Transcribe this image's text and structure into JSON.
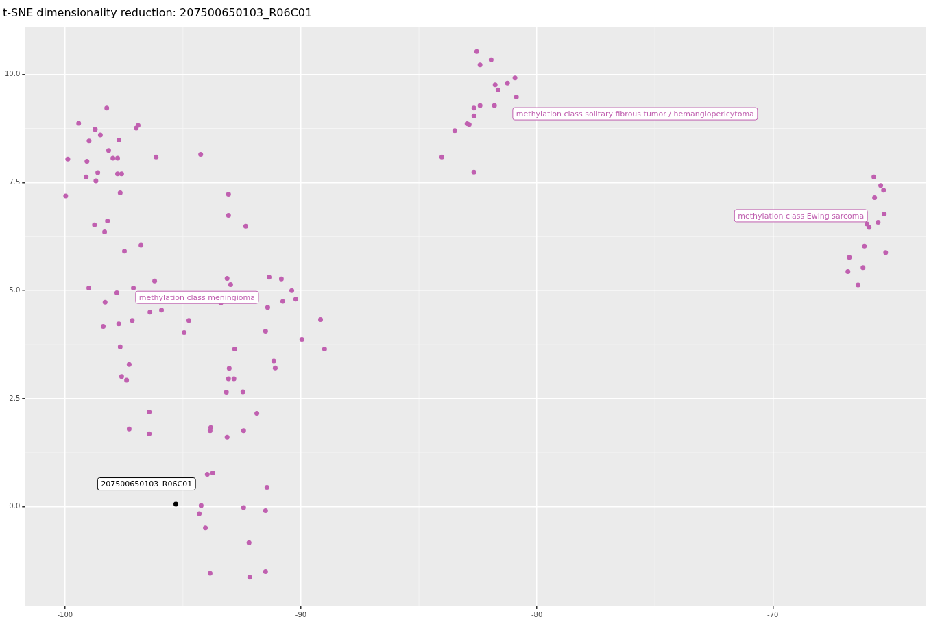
{
  "chart_data": {
    "type": "scatter",
    "title": "t-SNE dimensionality reduction: 207500650103_R06C01",
    "xlim": [
      -101.7,
      -63.5
    ],
    "ylim": [
      -2.3,
      11.1
    ],
    "xticks": [
      -100,
      -90,
      -80,
      -70
    ],
    "yticks": [
      {
        "value": 0,
        "label": "0.0"
      },
      {
        "value": 2.5,
        "label": "2.5"
      },
      {
        "value": 5,
        "label": "5.0"
      },
      {
        "value": 7.5,
        "label": "7.5"
      },
      {
        "value": 10,
        "label": "10.0"
      }
    ],
    "grid": true,
    "legend": false,
    "marker": "circle",
    "series": [
      {
        "color": "#c060b0",
        "x": [
          -99.97,
          -99.88,
          -99.42,
          -98.98,
          -99.07,
          -99.1,
          -98.72,
          -98.23,
          -98.5,
          -98.72,
          -98.15,
          -97.97,
          -97.77,
          -97.71,
          -96.98,
          -96.9,
          -96.14,
          -94.25,
          -98.61,
          -98.69,
          -97.77,
          -97.6,
          -97.66,
          -98.75,
          -98.2,
          -98.32,
          -97.48,
          -96.78,
          -98.99,
          -98.3,
          -97.8,
          -97.1,
          -96.2,
          -98.38,
          -97.72,
          -97.15,
          -96.4,
          -95.91,
          -97.66,
          -97.28,
          -97.6,
          -97.39,
          -96.43,
          -97.28,
          -96.43,
          -93.07,
          -93.07,
          -92.34,
          -93.13,
          -92.98,
          -93.39,
          -94.75,
          -94.95,
          -91.35,
          -90.83,
          -90.39,
          -90.22,
          -90.77,
          -91.41,
          -89.17,
          -91.5,
          -89.96,
          -89.0,
          -92.81,
          -91.15,
          -91.09,
          -93.04,
          -93.07,
          -92.84,
          -93.16,
          -92.46,
          -91.87,
          -93.82,
          -93.85,
          -92.43,
          -93.13,
          -93.97,
          -93.74,
          -91.44,
          -94.23,
          -92.43,
          -94.31,
          -91.5,
          -94.05,
          -92.2,
          -93.85,
          -92.17,
          -91.5,
          -82.55,
          -82.41,
          -81.94,
          -80.93,
          -81.25,
          -81.77,
          -81.65,
          -80.87,
          -82.41,
          -82.67,
          -82.67,
          -81.8,
          -82.96,
          -82.87,
          -83.48,
          -84.03,
          -82.67,
          -65.72,
          -65.43,
          -65.31,
          -65.69,
          -65.28,
          -65.54,
          -66.01,
          -65.92,
          -66.12,
          -65.22,
          -66.76,
          -66.18,
          -66.82,
          -66.39
        ],
        "values": [
          7.19,
          8.04,
          8.87,
          8.46,
          7.99,
          7.63,
          8.73,
          9.22,
          8.6,
          8.73,
          8.24,
          8.06,
          8.06,
          8.48,
          8.76,
          8.82,
          8.09,
          8.15,
          7.73,
          7.54,
          7.7,
          7.7,
          7.26,
          6.52,
          6.61,
          6.36,
          5.91,
          6.05,
          5.06,
          4.73,
          4.95,
          5.06,
          5.22,
          4.17,
          4.23,
          4.31,
          4.5,
          4.55,
          3.7,
          3.29,
          3.01,
          2.93,
          2.19,
          1.8,
          1.69,
          7.23,
          6.74,
          6.49,
          5.28,
          5.14,
          4.72,
          4.31,
          4.03,
          5.31,
          5.27,
          5.0,
          4.8,
          4.75,
          4.61,
          4.33,
          4.06,
          3.87,
          3.65,
          3.65,
          3.37,
          3.21,
          3.2,
          2.96,
          2.96,
          2.65,
          2.66,
          2.16,
          1.83,
          1.76,
          1.76,
          1.61,
          0.75,
          0.78,
          0.45,
          0.03,
          -0.02,
          -0.16,
          -0.09,
          -0.49,
          -0.83,
          -1.54,
          -1.63,
          -1.5,
          10.53,
          10.22,
          10.34,
          9.92,
          9.8,
          9.76,
          9.64,
          9.48,
          9.28,
          9.22,
          9.04,
          9.28,
          8.86,
          8.84,
          8.7,
          8.09,
          7.74,
          7.63,
          7.43,
          7.32,
          7.15,
          6.77,
          6.58,
          6.54,
          6.46,
          6.03,
          5.88,
          5.77,
          5.53,
          5.44,
          5.13
        ]
      },
      {
        "color": "#000000",
        "x": [
          -95.3
        ],
        "values": [
          0.06
        ]
      }
    ],
    "annotations": [
      "methylation class meningioma",
      "methylation class solitary fibrous tumor / hemangiopericytoma",
      "methylation class Ewing sarcoma",
      "207500650103_R06C01"
    ]
  }
}
